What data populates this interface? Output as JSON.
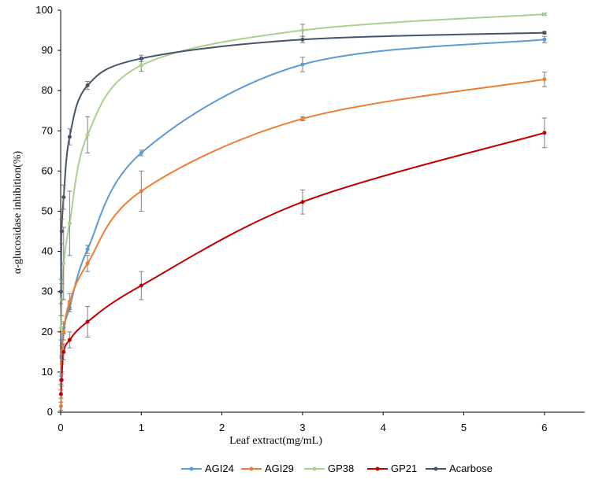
{
  "chart_data": {
    "type": "line",
    "title": "",
    "xlabel": "Leaf extract(mg/mL)",
    "ylabel": "α-glucosidase  inhibition(%)",
    "xlim": [
      0,
      6.5
    ],
    "ylim": [
      0,
      100
    ],
    "x_ticks": [
      0,
      1,
      2,
      3,
      4,
      5,
      6
    ],
    "y_ticks": [
      0,
      10,
      20,
      30,
      40,
      50,
      60,
      70,
      80,
      90,
      100
    ],
    "grid": false,
    "legend_position": "bottom",
    "series": [
      {
        "name": "AGI24",
        "color": "#5b9bd5",
        "points": [
          {
            "x": 0.004,
            "y": 8,
            "err": 1
          },
          {
            "x": 0.012,
            "y": 15,
            "err": 1.5
          },
          {
            "x": 0.037,
            "y": 21,
            "err": 1.5
          },
          {
            "x": 0.111,
            "y": 26,
            "err": 1
          },
          {
            "x": 0.333,
            "y": 40.5,
            "err": 1
          },
          {
            "x": 1,
            "y": 64.5,
            "err": 0.7
          },
          {
            "x": 3,
            "y": 86.5,
            "err": 1.8
          },
          {
            "x": 6,
            "y": 92.7,
            "err": 0.8
          }
        ]
      },
      {
        "name": "AGI29",
        "color": "#ed7d31",
        "points": [
          {
            "x": 0.004,
            "y": 1.5,
            "err": 1
          },
          {
            "x": 0.012,
            "y": 12,
            "err": 2
          },
          {
            "x": 0.037,
            "y": 20,
            "err": 2
          },
          {
            "x": 0.111,
            "y": 27.5,
            "err": 2
          },
          {
            "x": 0.333,
            "y": 37,
            "err": 2
          },
          {
            "x": 1,
            "y": 55,
            "err": 5
          },
          {
            "x": 3,
            "y": 73,
            "err": 0.5
          },
          {
            "x": 6,
            "y": 82.8,
            "err": 1.8
          }
        ]
      },
      {
        "name": "GP38",
        "color": "#a9d18e",
        "points": [
          {
            "x": 0.004,
            "y": 21,
            "err": 3
          },
          {
            "x": 0.012,
            "y": 28,
            "err": 4
          },
          {
            "x": 0.037,
            "y": 37,
            "err": 9
          },
          {
            "x": 0.111,
            "y": 47,
            "err": 8
          },
          {
            "x": 0.333,
            "y": 69,
            "err": 4.5
          },
          {
            "x": 1,
            "y": 86.3,
            "err": 1.5
          },
          {
            "x": 3,
            "y": 95,
            "err": 1.5
          },
          {
            "x": 6,
            "y": 99,
            "err": 0.3
          }
        ]
      },
      {
        "name": "GP21",
        "color": "#c00000",
        "points": [
          {
            "x": 0.004,
            "y": 4.5,
            "err": 1
          },
          {
            "x": 0.012,
            "y": 8,
            "err": 1.5
          },
          {
            "x": 0.037,
            "y": 15,
            "err": 2
          },
          {
            "x": 0.111,
            "y": 18,
            "err": 2
          },
          {
            "x": 0.333,
            "y": 22.5,
            "err": 3.8
          },
          {
            "x": 1,
            "y": 31.5,
            "err": 3.5
          },
          {
            "x": 3,
            "y": 52.3,
            "err": 3
          },
          {
            "x": 6,
            "y": 69.5,
            "err": 3.7
          }
        ]
      },
      {
        "name": "Acarbose",
        "color": "#44546a",
        "points": [
          {
            "x": 0.004,
            "y": 30,
            "err": 3
          },
          {
            "x": 0.012,
            "y": 45,
            "err": 3
          },
          {
            "x": 0.037,
            "y": 53.5,
            "err": 3
          },
          {
            "x": 0.111,
            "y": 68.5,
            "err": 2
          },
          {
            "x": 0.333,
            "y": 81.3,
            "err": 1
          },
          {
            "x": 1,
            "y": 88,
            "err": 0.8
          },
          {
            "x": 3,
            "y": 92.7,
            "err": 0.8
          },
          {
            "x": 6,
            "y": 94.4,
            "err": 0.3
          }
        ]
      }
    ]
  }
}
